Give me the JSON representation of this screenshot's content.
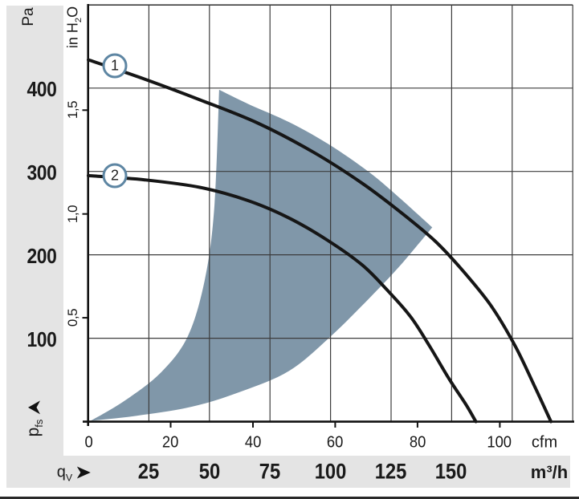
{
  "colors": {
    "operating_region": "#8097a9",
    "badge_ring": "#5e86a3",
    "grid_line": "#3c3c3c",
    "axis_line": "#111111",
    "curve": "#161616",
    "panel_gray": "#e4e4e4",
    "text": "#1a1a1a"
  },
  "pressure_axis": {
    "unit": "Pa",
    "tick_labels": [
      "400",
      "300",
      "200",
      "100"
    ]
  },
  "inh2o_axis": {
    "unit_prefix": "in H",
    "unit_sub": "2",
    "unit_suffix": "O",
    "tick_labels": [
      "1,5",
      "1,0",
      "0,5"
    ]
  },
  "pfs_label": {
    "base": "p",
    "sub": "fs"
  },
  "cfm_axis": {
    "tick_labels": [
      "0",
      "20",
      "40",
      "60",
      "80",
      "100"
    ],
    "unit": "cfm"
  },
  "m3h_axis": {
    "label_base": "q",
    "label_sub": "V",
    "tick_labels": [
      "25",
      "50",
      "75",
      "100",
      "125",
      "150"
    ],
    "unit": "m³/h"
  },
  "badges": [
    {
      "label": "1"
    },
    {
      "label": "2"
    }
  ],
  "icons": {
    "flow_arrow": "right-arrow",
    "pressure_arrow": "up-arrow"
  },
  "chart_data": {
    "type": "line",
    "title": "",
    "xlabel": "qV — air flow (m³/h bottom scale, cfm top scale)",
    "ylabel": "pfs — static pressure (Pa left scale, in H2O inner scale)",
    "xlim_m3h": [
      0,
      200
    ],
    "ylim_pa": [
      0,
      500
    ],
    "x_ticks_m3h": [
      25,
      50,
      75,
      100,
      125,
      150
    ],
    "x_ticks_cfm": [
      0,
      20,
      40,
      60,
      80,
      100
    ],
    "y_ticks_pa": [
      100,
      200,
      300,
      400
    ],
    "y_ticks_inh2o": [
      0.5,
      1.0,
      1.5
    ],
    "grid": true,
    "legend_position": "on-curve-badges",
    "series": [
      {
        "name": "1",
        "points_m3h_pa": [
          [
            0,
            434
          ],
          [
            23,
            411
          ],
          [
            46,
            386
          ],
          [
            70,
            358
          ],
          [
            93,
            323
          ],
          [
            113,
            286
          ],
          [
            129,
            251
          ],
          [
            143,
            217
          ],
          [
            154,
            183
          ],
          [
            166,
            140
          ],
          [
            176,
            92
          ],
          [
            184,
            44
          ],
          [
            191,
            0
          ]
        ]
      },
      {
        "name": "2",
        "points_m3h_pa": [
          [
            0,
            295
          ],
          [
            23,
            290
          ],
          [
            46,
            281
          ],
          [
            66,
            265
          ],
          [
            83,
            244
          ],
          [
            99,
            217
          ],
          [
            113,
            188
          ],
          [
            123,
            159
          ],
          [
            133,
            126
          ],
          [
            141,
            90
          ],
          [
            149,
            51
          ],
          [
            156,
            20
          ],
          [
            160,
            0
          ]
        ]
      }
    ],
    "operating_region": {
      "fill": "#8097a9",
      "edges_m3h_pa": [
        [
          [
            1,
            1
          ],
          [
            15,
            25
          ],
          [
            30,
            59
          ],
          [
            41,
            102
          ],
          [
            48,
            169
          ],
          [
            52,
            256
          ],
          [
            54,
            398
          ]
        ],
        [
          [
            54,
            398
          ],
          [
            66,
            381
          ],
          [
            83,
            359
          ],
          [
            99,
            333
          ],
          [
            116,
            299
          ],
          [
            129,
            267
          ],
          [
            142,
            233
          ]
        ],
        [
          [
            142,
            233
          ],
          [
            129,
            188
          ],
          [
            116,
            148
          ],
          [
            100,
            102
          ],
          [
            83,
            61
          ],
          [
            63,
            36
          ],
          [
            43,
            18
          ],
          [
            20,
            7
          ],
          [
            1,
            1
          ]
        ]
      ]
    }
  }
}
